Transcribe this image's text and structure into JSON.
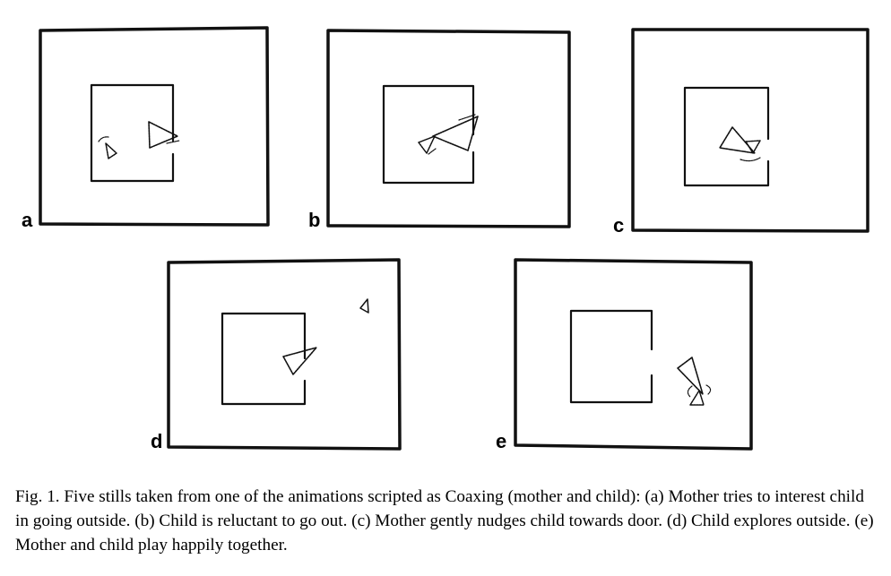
{
  "figure": {
    "panels": [
      {
        "label": "a"
      },
      {
        "label": "b"
      },
      {
        "label": "c"
      },
      {
        "label": "d"
      },
      {
        "label": "e"
      }
    ],
    "caption": {
      "prefix": "Fig. 1.",
      "text": "Five stills taken from one of the animations scripted as Coaxing (mother and child): (a) Mother tries to interest child in going outside. (b) Child is reluctant to go out. (c) Mother gently nudges child towards door. (d) Child explores outside. (e) Mother and child play happily together."
    }
  }
}
